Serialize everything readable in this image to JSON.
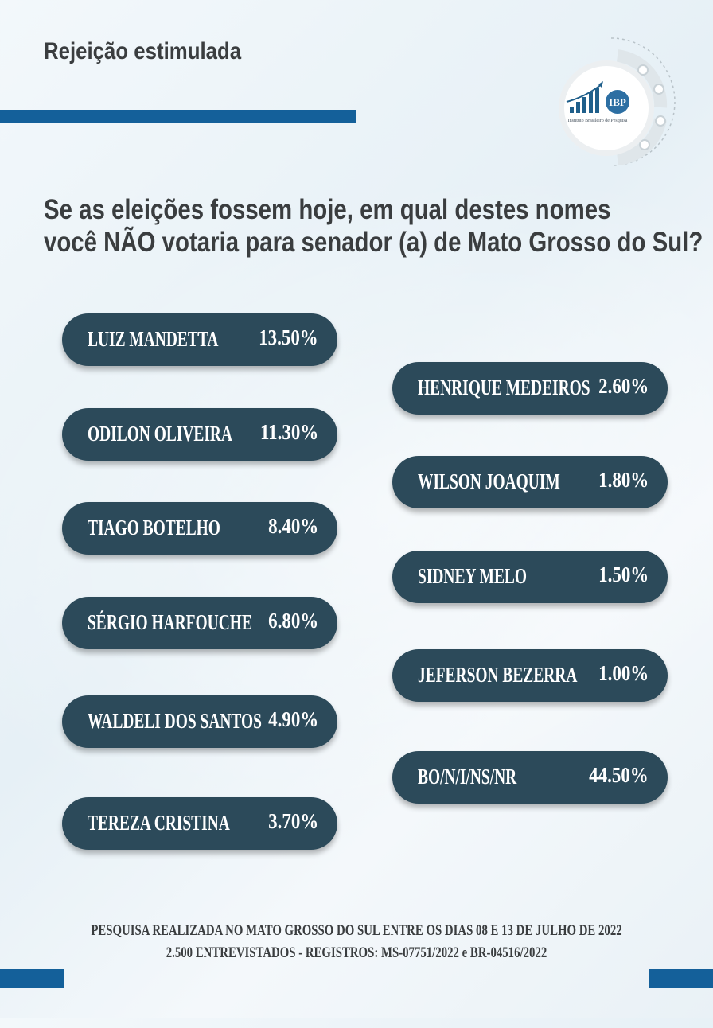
{
  "header": {
    "title": "Rejeição estimulada"
  },
  "logo": {
    "abbrev": "IBP",
    "subtitle": "Instituto Brasileiro de Pesquisa"
  },
  "question": {
    "line1": "Se as eleições fossem hoje, em qual destes nomes",
    "line2": "você NÃO votaria para senador (a) de Mato Grosso do Sul?"
  },
  "results": [
    {
      "name": "LUIZ MANDETTA",
      "value": "13.50%"
    },
    {
      "name": "ODILON OLIVEIRA",
      "value": "11.30%"
    },
    {
      "name": "TIAGO BOTELHO",
      "value": "8.40%"
    },
    {
      "name": "SÉRGIO HARFOUCHE",
      "value": "6.80%"
    },
    {
      "name": "WALDELI DOS SANTOS",
      "value": "4.90%"
    },
    {
      "name": "TEREZA CRISTINA",
      "value": "3.70%"
    },
    {
      "name": "HENRIQUE MEDEIROS",
      "value": "2.60%"
    },
    {
      "name": "WILSON JOAQUIM",
      "value": "1.80%"
    },
    {
      "name": "SIDNEY MELO",
      "value": "1.50%"
    },
    {
      "name": "JEFERSON BEZERRA",
      "value": "1.00%"
    },
    {
      "name": "BO/N/I/NS/NR",
      "value": "44.50%"
    }
  ],
  "footer": {
    "line1": "PESQUISA REALIZADA NO MATO GROSSO DO SUL ENTRE OS DIAS 08 E 13 DE JULHO DE 2022",
    "line2": "2.500 ENTREVISTADOS - REGISTROS: MS-07751/2022 e BR-04516/2022"
  },
  "colors": {
    "pill": "#2c4a5a",
    "accent_bar": "#14609a",
    "heading_text": "#3a3d3f"
  }
}
